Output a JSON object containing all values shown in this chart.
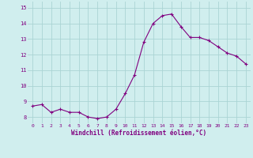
{
  "x": [
    0,
    1,
    2,
    3,
    4,
    5,
    6,
    7,
    8,
    9,
    10,
    11,
    12,
    13,
    14,
    15,
    16,
    17,
    18,
    19,
    20,
    21,
    22,
    23
  ],
  "y": [
    8.7,
    8.8,
    8.3,
    8.5,
    8.3,
    8.3,
    8.0,
    7.9,
    8.0,
    8.5,
    9.5,
    10.7,
    12.8,
    14.0,
    14.5,
    14.6,
    13.8,
    13.1,
    13.1,
    12.9,
    12.5,
    12.1,
    11.9,
    11.4
  ],
  "line_color": "#800080",
  "marker": "+",
  "bg_color": "#d0eeee",
  "grid_color": "#aad4d4",
  "xlabel": "Windchill (Refroidissement éolien,°C)",
  "xlabel_color": "#800080",
  "tick_color": "#800080",
  "ylim": [
    7.6,
    15.4
  ],
  "yticks": [
    8,
    9,
    10,
    11,
    12,
    13,
    14,
    15
  ],
  "xticks": [
    0,
    1,
    2,
    3,
    4,
    5,
    6,
    7,
    8,
    9,
    10,
    11,
    12,
    13,
    14,
    15,
    16,
    17,
    18,
    19,
    20,
    21,
    22,
    23
  ]
}
